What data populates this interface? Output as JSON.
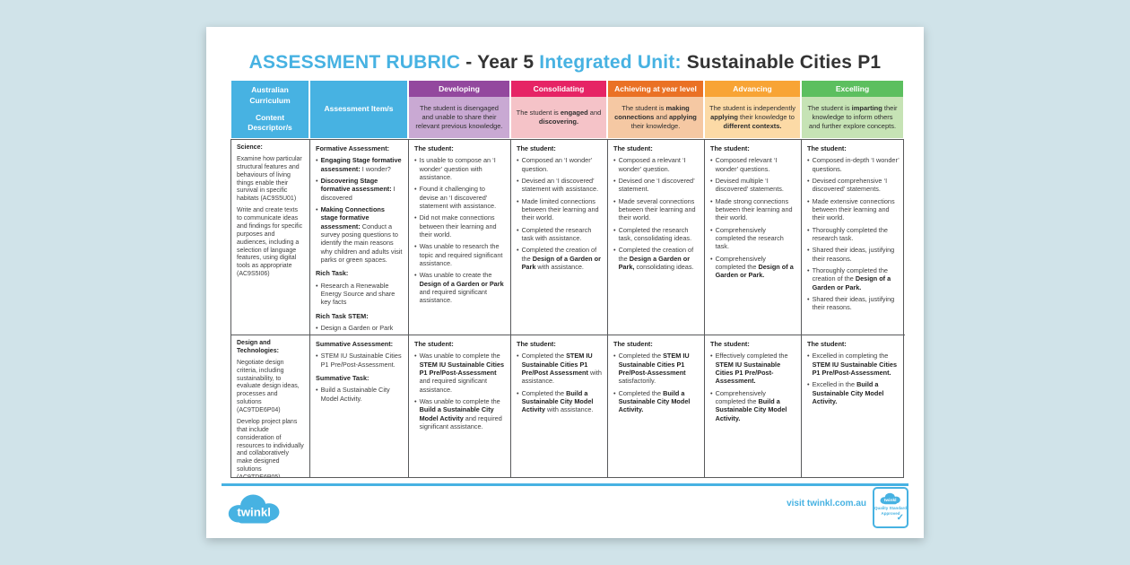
{
  "title": {
    "part1": "ASSESSMENT RUBRIC",
    "part2": " - Year 5 ",
    "part3": "Integrated Unit:",
    "part4": " Sustainable Cities P1"
  },
  "colors": {
    "brand_blue": "#47b2e2",
    "developing": "#93489e",
    "developing_tint": "#c9a9d3",
    "consolidating": "#e62465",
    "consolidating_tint": "#f5c3c8",
    "achieving": "#ea7125",
    "achieving_tint": "#f5c8a3",
    "advancing": "#f8a435",
    "advancing_tint": "#fcdaa6",
    "excelling": "#5cbf5f",
    "excelling_tint": "#c6e3b5",
    "border": "#58595b"
  },
  "table": {
    "corner_header": {
      "line1": "Australian Curriculum",
      "line2": "Content Descriptor/s"
    },
    "assessment_header": "Assessment Item/s",
    "levels": [
      {
        "name": "Developing",
        "color": "#93489e",
        "tint": "#c9a9d3",
        "description": [
          "The student is disengaged and unable to share their relevant previous knowledge."
        ]
      },
      {
        "name": "Consolidating",
        "color": "#e62465",
        "tint": "#f5c3c8",
        "description": [
          "The student is ",
          {
            "t": "engaged",
            "b": true
          },
          " and ",
          {
            "t": "discovering.",
            "b": true
          }
        ]
      },
      {
        "name": "Achieving at year level",
        "color": "#ea7125",
        "tint": "#f5c8a3",
        "description": [
          "The student is ",
          {
            "t": "making connections",
            "b": true
          },
          " and ",
          {
            "t": "applying",
            "b": true
          },
          " their knowledge."
        ]
      },
      {
        "name": "Advancing",
        "color": "#f8a435",
        "tint": "#fcdaa6",
        "description": [
          "The student is independently ",
          {
            "t": "applying",
            "b": true
          },
          " their knowledge to ",
          {
            "t": "different contexts.",
            "b": true
          }
        ]
      },
      {
        "name": "Excelling",
        "color": "#5cbf5f",
        "tint": "#c6e3b5",
        "description": [
          "The student is ",
          {
            "t": "imparting",
            "b": true
          },
          " their knowledge to inform others and further explore concepts."
        ]
      }
    ],
    "rows": [
      {
        "descriptor": {
          "heading": "Science:",
          "paragraphs": [
            "Examine how particular structural features and behaviours of living things enable their survival in specific habitats (AC9S5U01)",
            "Write and create texts to communicate ideas and findings for specific purposes and audiences, including a selection of language features, using digital tools as appropriate (AC9S5I06)"
          ]
        },
        "assessment": {
          "sections": [
            {
              "heading": "Formative Assessment:",
              "bullets": [
                [
                  {
                    "t": "Engaging Stage formative assessment:",
                    "b": true
                  },
                  " I wonder?"
                ],
                [
                  {
                    "t": "Discovering Stage formative assessment:",
                    "b": true
                  },
                  " I discovered"
                ],
                [
                  {
                    "t": "Making Connections stage formative assessment:",
                    "b": true
                  },
                  " Conduct a survey posing questions to identify the main reasons why children and adults visit parks or green spaces."
                ]
              ]
            },
            {
              "heading": "Rich Task:",
              "bullets": [
                [
                  "Research a Renewable Energy Source and share key facts"
                ]
              ]
            },
            {
              "heading": "Rich Task STEM:",
              "bullets": [
                [
                  "Design a Garden or Park"
                ]
              ]
            }
          ]
        },
        "levels": [
          {
            "intro": "The student:",
            "bullets": [
              [
                "Is unable to compose an ‘I wonder’ question with assistance."
              ],
              [
                "Found it challenging to devise an ‘I discovered’ statement with assistance."
              ],
              [
                "Did not make connections between their learning and their world."
              ],
              [
                "Was unable to research the topic and required significant assistance."
              ],
              [
                "Was unable to create the ",
                {
                  "t": "Design of a Garden or Park",
                  "b": true
                },
                " and required significant assistance."
              ]
            ]
          },
          {
            "intro": "The student:",
            "bullets": [
              [
                "Composed an ‘I wonder’ question."
              ],
              [
                "Devised an ‘I discovered’ statement with assistance."
              ],
              [
                "Made limited connections between their learning and their world."
              ],
              [
                "Completed the research task with assistance."
              ],
              [
                "Completed the creation of the ",
                {
                  "t": "Design of a Garden or Park",
                  "b": true
                },
                " with assistance."
              ]
            ]
          },
          {
            "intro": "The student:",
            "bullets": [
              [
                "Composed a relevant ‘I wonder’ question."
              ],
              [
                "Devised one ‘I discovered’ statement."
              ],
              [
                "Made several connections between their learning and their world."
              ],
              [
                "Completed the research task, consolidating ideas."
              ],
              [
                "Completed the creation of the ",
                {
                  "t": "Design a Garden or Park,",
                  "b": true
                },
                " consolidating ideas."
              ]
            ]
          },
          {
            "intro": "The student:",
            "bullets": [
              [
                "Composed relevant ‘I wonder’ questions."
              ],
              [
                "Devised multiple ‘I discovered’ statements."
              ],
              [
                "Made strong connections between their learning and their world."
              ],
              [
                "Comprehensively completed the research task."
              ],
              [
                "Comprehensively completed the ",
                {
                  "t": "Design of a Garden or Park.",
                  "b": true
                }
              ]
            ]
          },
          {
            "intro": "The student:",
            "bullets": [
              [
                "Composed in-depth ‘I wonder’ questions."
              ],
              [
                "Devised comprehensive ‘I discovered’ statements."
              ],
              [
                "Made extensive connections between their learning and their world."
              ],
              [
                "Thoroughly completed the research task."
              ],
              [
                "Shared their ideas, justifying their reasons."
              ],
              [
                "Thoroughly completed the creation of the ",
                {
                  "t": "Design of a Garden or Park.",
                  "b": true
                }
              ],
              [
                "Shared their ideas, justifying their reasons."
              ]
            ]
          }
        ]
      },
      {
        "descriptor": {
          "heading": "Design and Technologies:",
          "paragraphs": [
            "Negotiate design criteria, including sustainability, to evaluate design ideas, processes and solutions (AC9TDE6P04)",
            "Develop project plans that include consideration of resources to individually and collaboratively make designed solutions (AC9TDE6P05)"
          ]
        },
        "assessment": {
          "sections": [
            {
              "heading": "Summative Assessment:",
              "bullets": [
                [
                  "STEM IU Sustainable Cities P1 Pre/Post-Assessment."
                ]
              ]
            },
            {
              "heading": "Summative Task:",
              "bullets": [
                [
                  "Build a Sustainable City Model Activity."
                ]
              ]
            }
          ]
        },
        "levels": [
          {
            "intro": "The student:",
            "bullets": [
              [
                "Was unable to complete the ",
                {
                  "t": "STEM IU Sustainable Cities P1 Pre/Post-Assessment",
                  "b": true
                },
                " and required significant assistance."
              ],
              [
                "Was unable to complete the ",
                {
                  "t": "Build a Sustainable City Model Activity",
                  "b": true
                },
                " and required significant assistance."
              ]
            ]
          },
          {
            "intro": "The student:",
            "bullets": [
              [
                "Completed the ",
                {
                  "t": "STEM IU Sustainable Cities P1 Pre/Post Assessment",
                  "b": true
                },
                " with assistance."
              ],
              [
                "Completed the ",
                {
                  "t": "Build a Sustainable City Model Activity",
                  "b": true
                },
                " with assistance."
              ]
            ]
          },
          {
            "intro": "The student:",
            "bullets": [
              [
                "Completed the ",
                {
                  "t": "STEM IU Sustainable Cities P1 Pre/Post-Assessment",
                  "b": true
                },
                " satisfactorily."
              ],
              [
                "Completed the ",
                {
                  "t": "Build a Sustainable City Model Activity.",
                  "b": true
                }
              ]
            ]
          },
          {
            "intro": "The student:",
            "bullets": [
              [
                "Effectively completed the ",
                {
                  "t": "STEM IU Sustainable Cities P1 Pre/Post-Assessment.",
                  "b": true
                }
              ],
              [
                "Comprehensively completed the ",
                {
                  "t": "Build a Sustainable City Model Activity.",
                  "b": true
                }
              ]
            ]
          },
          {
            "intro": "The student:",
            "bullets": [
              [
                "Excelled in completing the ",
                {
                  "t": "STEM IU Sustainable Cities P1 Pre/Post-Assessment.",
                  "b": true
                }
              ],
              [
                "Excelled in the ",
                {
                  "t": "Build a Sustainable City Model Activity.",
                  "b": true
                }
              ]
            ]
          }
        ]
      }
    ]
  },
  "footer": {
    "logo_text": "twinkl",
    "visit_text": "visit twinkl.com.au",
    "badge": {
      "logo": "twinkl",
      "line1": "Quality Standard",
      "line2": "Approved",
      "check": "✓"
    }
  }
}
